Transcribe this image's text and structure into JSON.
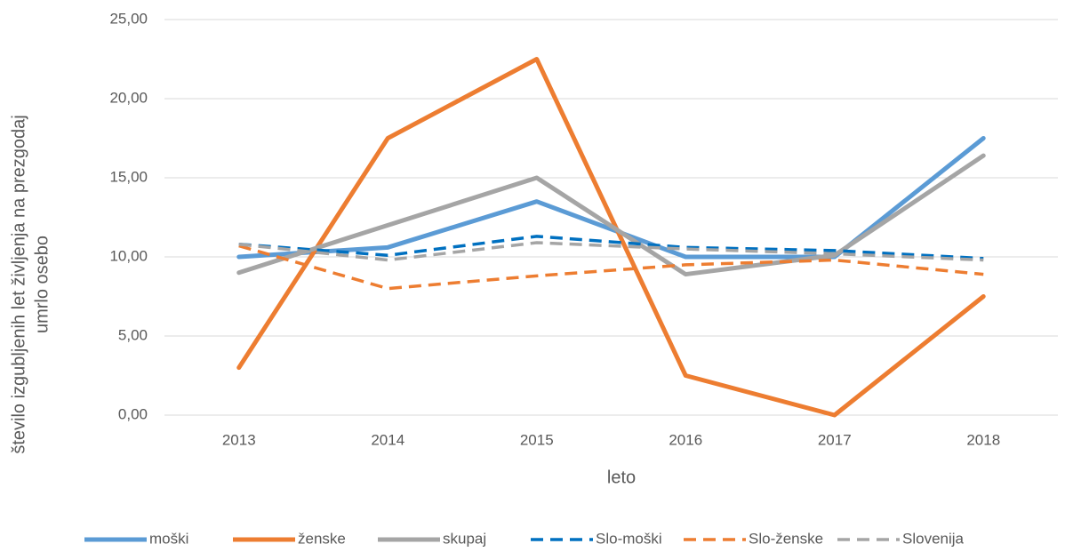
{
  "chart_data": {
    "type": "line",
    "x_label": "leto",
    "y_label": [
      "število izgubljenih let življenja na prezgodaj",
      "umrlo osebo"
    ],
    "categories": [
      "2013",
      "2014",
      "2015",
      "2016",
      "2017",
      "2018"
    ],
    "ylim": [
      0,
      25
    ],
    "yticks": [
      {
        "value": 0,
        "label": "0,00"
      },
      {
        "value": 5,
        "label": "5,00"
      },
      {
        "value": 10,
        "label": "10,00"
      },
      {
        "value": 15,
        "label": "15,00"
      },
      {
        "value": 20,
        "label": "20,00"
      },
      {
        "value": 25,
        "label": "25,00"
      }
    ],
    "grid": true,
    "legend": "bottom",
    "series": [
      {
        "name": "moški",
        "color": "#5b9bd5",
        "dashed": false,
        "values": [
          10.0,
          10.6,
          13.5,
          10.0,
          10.0,
          17.5
        ]
      },
      {
        "name": "ženske",
        "color": "#ed7d31",
        "dashed": false,
        "values": [
          3.0,
          17.5,
          22.5,
          2.5,
          0.0,
          7.5
        ]
      },
      {
        "name": "skupaj",
        "color": "#a5a5a5",
        "dashed": false,
        "values": [
          9.0,
          12.0,
          15.0,
          8.9,
          10.1,
          16.4
        ]
      },
      {
        "name": "Slo-moški",
        "color": "#0070c0",
        "dashed": true,
        "values": [
          10.8,
          10.1,
          11.3,
          10.6,
          10.4,
          9.9
        ]
      },
      {
        "name": "Slo-ženske",
        "color": "#ed7d31",
        "dashed": true,
        "values": [
          10.7,
          8.0,
          8.8,
          9.5,
          9.8,
          8.9
        ]
      },
      {
        "name": "Slovenija",
        "color": "#a5a5a5",
        "dashed": true,
        "values": [
          10.8,
          9.8,
          10.9,
          10.5,
          10.2,
          9.8
        ]
      }
    ]
  }
}
